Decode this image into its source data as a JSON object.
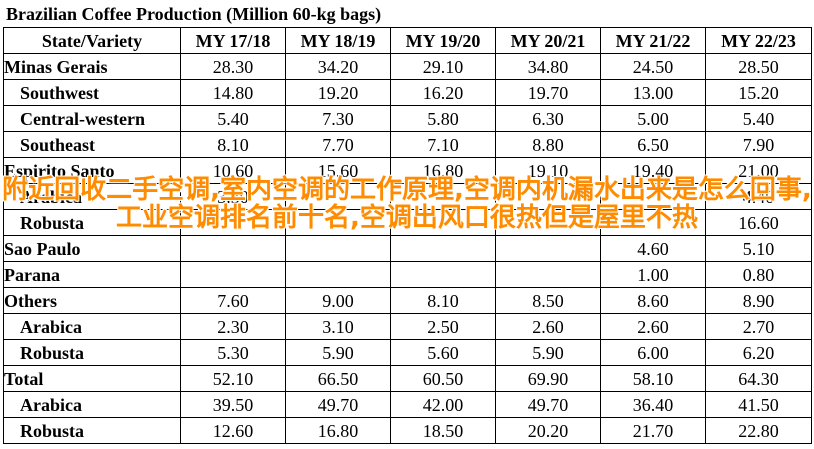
{
  "title": "Brazilian Coffee Production (Million 60-kg bags)",
  "columns": [
    "State/Variety",
    "MY 17/18",
    "MY 18/19",
    "MY 19/20",
    "MY 20/21",
    "MY 21/22",
    "MY 22/23"
  ],
  "rows": [
    {
      "label": "Minas Gerais",
      "level": "main",
      "values": [
        "28.30",
        "34.20",
        "29.10",
        "34.80",
        "24.50",
        "28.50"
      ]
    },
    {
      "label": "Southwest",
      "level": "sub",
      "values": [
        "14.80",
        "19.20",
        "16.20",
        "19.70",
        "13.00",
        "15.20"
      ]
    },
    {
      "label": "Central-western",
      "level": "sub",
      "values": [
        "5.40",
        "7.30",
        "5.80",
        "6.30",
        "5.00",
        "5.40"
      ]
    },
    {
      "label": "Southeast",
      "level": "sub",
      "values": [
        "8.10",
        "7.70",
        "7.10",
        "8.80",
        "6.50",
        "7.90"
      ]
    },
    {
      "label": "Espirito Santo",
      "level": "main",
      "values": [
        "10.60",
        "15.60",
        "16.80",
        "19.10",
        "19.40",
        "21.00"
      ]
    },
    {
      "label": "Arabica",
      "level": "sub",
      "values": [
        "3.30",
        "",
        "",
        "",
        "",
        "4.40"
      ]
    },
    {
      "label": "Robusta",
      "level": "sub",
      "values": [
        "",
        "",
        "",
        "",
        "",
        "16.60"
      ]
    },
    {
      "label": "Sao Paulo",
      "level": "main",
      "values": [
        "",
        "",
        "",
        "",
        "4.60",
        "5.10"
      ]
    },
    {
      "label": "Parana",
      "level": "main",
      "values": [
        "",
        "",
        "",
        "",
        "1.00",
        "0.80"
      ]
    },
    {
      "label": "Others",
      "level": "main",
      "values": [
        "7.60",
        "9.00",
        "8.10",
        "8.50",
        "8.60",
        "8.90"
      ]
    },
    {
      "label": "Arabica",
      "level": "sub",
      "values": [
        "2.30",
        "3.10",
        "2.50",
        "2.60",
        "2.60",
        "2.70"
      ]
    },
    {
      "label": "Robusta",
      "level": "sub",
      "values": [
        "5.30",
        "5.90",
        "5.60",
        "5.90",
        "6.00",
        "6.20"
      ]
    },
    {
      "label": "Total",
      "level": "main",
      "values": [
        "52.10",
        "66.50",
        "60.50",
        "69.90",
        "58.10",
        "64.30"
      ]
    },
    {
      "label": "Arabica",
      "level": "sub",
      "values": [
        "39.50",
        "49.70",
        "42.00",
        "49.70",
        "36.40",
        "41.50"
      ]
    },
    {
      "label": "Robusta",
      "level": "sub",
      "values": [
        "12.60",
        "16.80",
        "18.50",
        "20.20",
        "21.70",
        "22.80"
      ]
    }
  ],
  "watermark": "附近回收二手空调,室内空调的工作原理,空调内机漏水出来是怎么回事,工业空调排名前十名,空调出风口很热但是屋里不热",
  "colors": {
    "watermark": "#ff8c00",
    "border": "#000000",
    "background": "#ffffff"
  }
}
